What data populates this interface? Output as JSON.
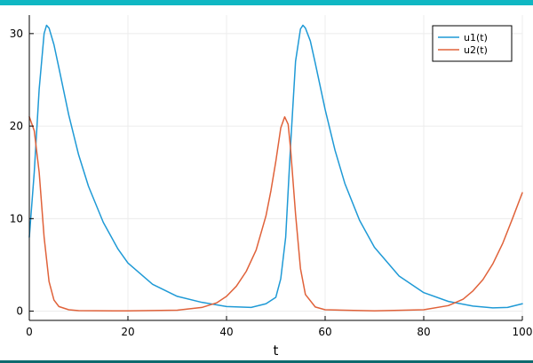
{
  "page": {
    "accent_top": "#0fb7c3",
    "accent_bottom": "#0d6a6e"
  },
  "chart_data": {
    "type": "line",
    "title": "",
    "xlabel": "t",
    "ylabel": "",
    "xlim": [
      0,
      100
    ],
    "ylim": [
      -1,
      32
    ],
    "xticks": [
      0,
      20,
      40,
      60,
      80,
      100
    ],
    "yticks": [
      0,
      10,
      20,
      30
    ],
    "grid": true,
    "legend_position": "top-right",
    "series": [
      {
        "name": "u1(t)",
        "color": "#1f9ad6",
        "x": [
          0,
          1,
          2,
          3,
          3.5,
          4,
          5,
          6,
          8,
          10,
          12,
          15,
          18,
          20,
          25,
          30,
          35,
          40,
          45,
          48,
          50,
          51,
          52,
          53,
          54,
          55,
          55.5,
          56,
          57,
          58,
          60,
          62,
          64,
          67,
          70,
          75,
          80,
          85,
          90,
          94,
          97,
          100
        ],
        "y": [
          8,
          15,
          24,
          30,
          30.9,
          30.6,
          28.8,
          26.3,
          21.2,
          16.9,
          13.5,
          9.6,
          6.7,
          5.2,
          2.9,
          1.6,
          0.95,
          0.5,
          0.4,
          0.8,
          1.5,
          3.5,
          8,
          18,
          27,
          30.5,
          30.9,
          30.6,
          29.2,
          26.8,
          21.8,
          17.4,
          13.8,
          9.8,
          6.9,
          3.8,
          2.0,
          1.05,
          0.55,
          0.35,
          0.4,
          0.8
        ]
      },
      {
        "name": "u2(t)",
        "color": "#e0623a",
        "x": [
          0,
          1,
          2,
          3,
          4,
          5,
          6,
          8,
          10,
          20,
          30,
          35,
          38,
          40,
          42,
          44,
          46,
          48,
          49,
          50,
          51,
          51.8,
          52.5,
          53,
          54,
          55,
          56,
          58,
          60,
          70,
          80,
          85,
          88,
          90,
          92,
          94,
          96,
          98,
          100
        ],
        "y": [
          21,
          19.5,
          15,
          8,
          3.2,
          1.2,
          0.5,
          0.15,
          0.05,
          0.03,
          0.1,
          0.4,
          0.9,
          1.6,
          2.7,
          4.3,
          6.6,
          10.3,
          13,
          16.2,
          19.8,
          21,
          20.2,
          17.5,
          10.5,
          4.6,
          1.8,
          0.45,
          0.15,
          0.03,
          0.15,
          0.6,
          1.3,
          2.2,
          3.4,
          5.1,
          7.3,
          10,
          12.8
        ]
      }
    ]
  }
}
